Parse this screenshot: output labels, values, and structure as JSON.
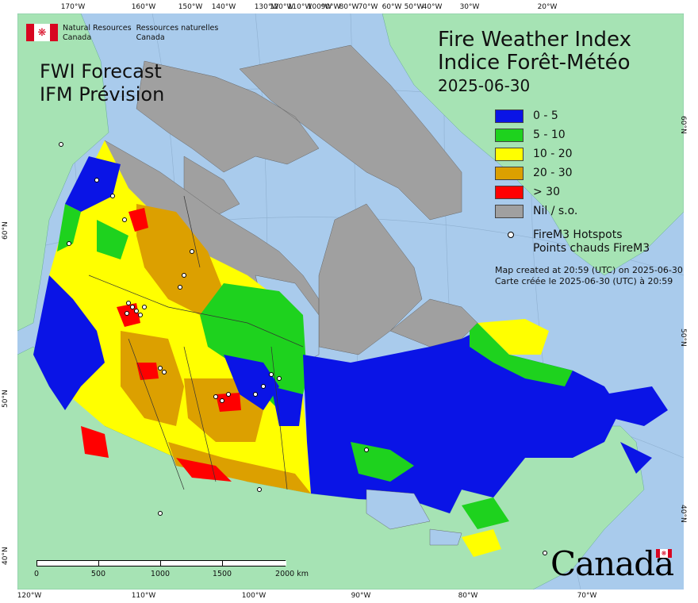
{
  "header": {
    "agency_en": "Natural Resources",
    "agency_en2": "Canada",
    "agency_fr": "Ressources naturelles",
    "agency_fr2": "Canada",
    "product_en": "FWI Forecast",
    "product_fr": "IFM Prévision",
    "title_en": "Fire Weather Index",
    "title_fr": "Indice Forêt-Météo",
    "date": "2025-06-30"
  },
  "legend": [
    {
      "label": "0 - 5",
      "color": "#0a14e6"
    },
    {
      "label": "5 - 10",
      "color": "#1ed21e"
    },
    {
      "label": "10 - 20",
      "color": "#ffff00"
    },
    {
      "label": "20 - 30",
      "color": "#dca000"
    },
    {
      "label": "> 30",
      "color": "#ff0000"
    },
    {
      "label": "Nil / s.o.",
      "color": "#a0a0a0"
    }
  ],
  "hotspots": {
    "label_en": "FireM3 Hotspots",
    "label_fr": "Points chauds FireM3"
  },
  "created": {
    "en": "Map created at 20:59 (UTC) on 2025-06-30",
    "fr": "Carte créée le 2025-06-30 (UTC) à 20:59"
  },
  "wordmark": "Canada",
  "scale": {
    "labels": [
      "0",
      "500",
      "1000",
      "1500",
      "2000 km"
    ]
  },
  "graticule": {
    "top": [
      "170°W",
      "160°W",
      "150°W",
      "140°W",
      "130°W",
      "120°W",
      "110°W",
      "100°W",
      "90°W",
      "80°W",
      "70°W",
      "60°W",
      "50°W",
      "40°W",
      "30°W",
      "20°W"
    ],
    "bottom": [
      "120°W",
      "110°W",
      "100°W",
      "90°W",
      "80°W",
      "70°W"
    ],
    "left": [
      "60°N",
      "50°N",
      "40°N"
    ],
    "right": [
      "60°N",
      "50°N",
      "40°N"
    ]
  },
  "colors": {
    "ocean": "#a9cbec",
    "land_outside": "#a6e3b4",
    "no_data": "#a0a0a0"
  }
}
